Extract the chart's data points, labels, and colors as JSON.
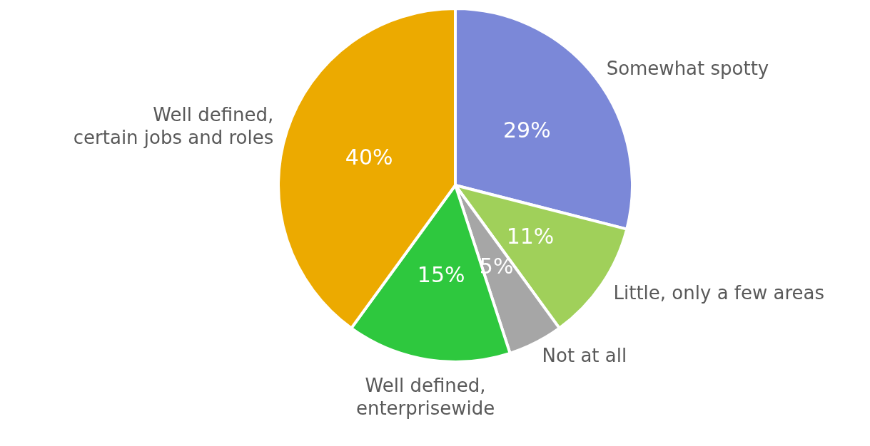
{
  "chart_data": {
    "type": "pie",
    "categories": [
      "Somewhat spotty",
      "Little, only a few areas",
      "Not at all",
      "Well defined,\nenterprisewide",
      "Well defined,\ncertain jobs and roles"
    ],
    "values": [
      29,
      11,
      5,
      15,
      40
    ],
    "value_labels": [
      "29%",
      "11%",
      "5%",
      "15%",
      "40%"
    ],
    "colors": [
      "#7b88d8",
      "#a0d05a",
      "#a6a6a6",
      "#2ec83e",
      "#ecaa00"
    ],
    "legend": false
  }
}
